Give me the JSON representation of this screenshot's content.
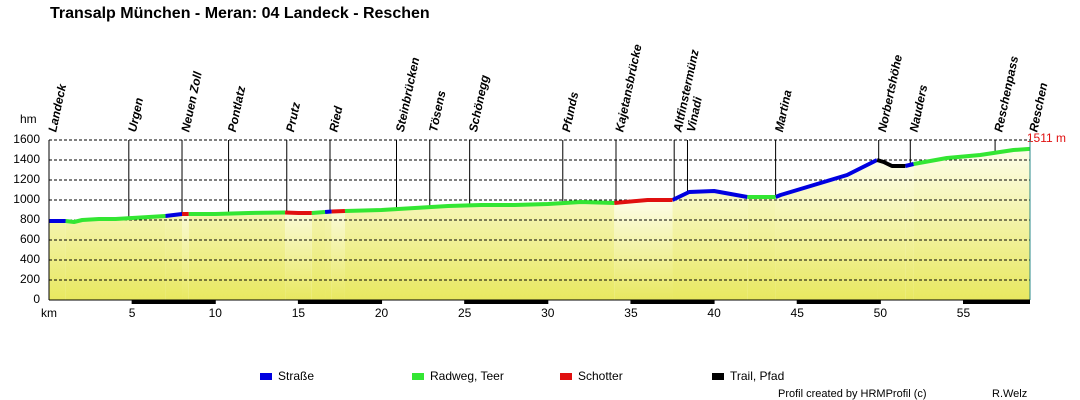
{
  "chart_data": {
    "type": "elevation-profile",
    "title": "Transalp München - Meran: 04 Landeck - Reschen",
    "x_label": "km",
    "y_label": "hm",
    "end_label": "1511 m",
    "xlim": [
      0,
      59
    ],
    "xticks": [
      5,
      10,
      15,
      20,
      25,
      30,
      35,
      40,
      45,
      50,
      55
    ],
    "ylim": [
      0,
      1600
    ],
    "yticks": [
      0,
      200,
      400,
      600,
      800,
      1000,
      1200,
      1400,
      1600
    ],
    "grid": true,
    "waypoints": [
      {
        "name": "Landeck",
        "km": 0
      },
      {
        "name": "Urgen",
        "km": 4.8
      },
      {
        "name": "Neuen Zoll",
        "km": 8
      },
      {
        "name": "Pontlatz",
        "km": 10.8
      },
      {
        "name": "Prutz",
        "km": 14.3
      },
      {
        "name": "Ried",
        "km": 16.9
      },
      {
        "name": "Steinbrücken",
        "km": 20.9
      },
      {
        "name": "Tösens",
        "km": 22.9
      },
      {
        "name": "Schönegg",
        "km": 25.3
      },
      {
        "name": "Pfunds",
        "km": 30.9
      },
      {
        "name": "Kajetansbrücke",
        "km": 34.1
      },
      {
        "name": "Altfinstermünz",
        "km": 37.6
      },
      {
        "name": "Vinadi",
        "km": 38.4
      },
      {
        "name": "Martina",
        "km": 43.7
      },
      {
        "name": "Norbertshöhe",
        "km": 49.9
      },
      {
        "name": "Nauders",
        "km": 51.8
      },
      {
        "name": "Reschenpass",
        "km": 56.9
      },
      {
        "name": "Reschen",
        "km": 59
      }
    ],
    "x": [
      0,
      1,
      1.5,
      2,
      3,
      4,
      5,
      6,
      7,
      8,
      8.4,
      9,
      10,
      12,
      14.2,
      15,
      15.8,
      16.6,
      17,
      17.8,
      20,
      22,
      24,
      26,
      28,
      30,
      32,
      34,
      36,
      37.5,
      38,
      38.5,
      40,
      41,
      42,
      42.5,
      43.7,
      44,
      46,
      48,
      49.8,
      50.2,
      50.7,
      51.2,
      51.5,
      52,
      54,
      56,
      58,
      59
    ],
    "series": [
      {
        "name": "Straße",
        "color": "#0000e0",
        "values": [
          790,
          790,
          null,
          null,
          null,
          null,
          null,
          null,
          840,
          860,
          null,
          null,
          null,
          null,
          null,
          null,
          null,
          880,
          885,
          null,
          null,
          null,
          null,
          null,
          null,
          null,
          null,
          null,
          null,
          1000,
          1040,
          1080,
          1090,
          1060,
          1030,
          null,
          1030,
          1050,
          1150,
          1250,
          1400,
          null,
          null,
          null,
          1340,
          1360,
          null,
          null,
          null,
          null
        ]
      },
      {
        "name": "Radweg, Teer",
        "color": "#33e633",
        "values": [
          null,
          790,
          780,
          800,
          810,
          810,
          820,
          830,
          840,
          null,
          860,
          860,
          860,
          870,
          875,
          null,
          870,
          880,
          null,
          890,
          900,
          920,
          940,
          950,
          950,
          960,
          980,
          970,
          null,
          null,
          null,
          null,
          null,
          null,
          1030,
          1030,
          1030,
          null,
          null,
          null,
          null,
          null,
          null,
          null,
          null,
          1360,
          1420,
          1450,
          1500,
          1511
        ]
      },
      {
        "name": "Schotter",
        "color": "#e01010",
        "values": [
          null,
          null,
          null,
          null,
          null,
          null,
          null,
          null,
          null,
          860,
          860,
          null,
          null,
          null,
          875,
          870,
          870,
          null,
          885,
          890,
          null,
          null,
          null,
          null,
          null,
          null,
          null,
          970,
          1000,
          1000,
          null,
          null,
          null,
          null,
          null,
          null,
          null,
          null,
          null,
          null,
          null,
          null,
          null,
          null,
          null,
          null,
          null,
          null,
          null,
          null
        ]
      },
      {
        "name": "Trail, Pfad",
        "color": "#000000",
        "values": [
          null,
          null,
          null,
          null,
          null,
          null,
          null,
          null,
          null,
          null,
          null,
          null,
          null,
          null,
          null,
          null,
          null,
          null,
          null,
          null,
          null,
          null,
          null,
          null,
          null,
          null,
          null,
          null,
          null,
          null,
          null,
          null,
          null,
          null,
          null,
          null,
          null,
          null,
          null,
          null,
          1400,
          1380,
          1340,
          1340,
          1340,
          null,
          null,
          null,
          null,
          null
        ]
      }
    ],
    "footer": "Profil created by HRMProfil (c)",
    "author": "R.Welz"
  }
}
